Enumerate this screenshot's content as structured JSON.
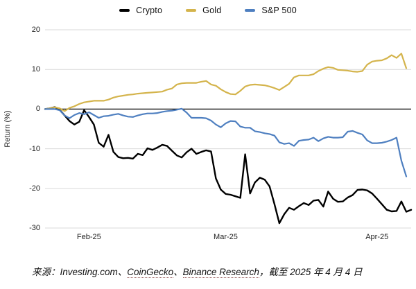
{
  "chart_data": {
    "type": "line",
    "title": "",
    "xlabel": "",
    "ylabel": "Return (%)",
    "grid": true,
    "legend_position": "top-center",
    "x_axis": {
      "tick_labels": [
        "Feb-25",
        "Mar-25",
        "Apr-25"
      ],
      "tick_positions": [
        9,
        37,
        68
      ],
      "range": [
        0,
        75
      ]
    },
    "y_axis": {
      "tick_labels": [
        "20",
        "10",
        "0",
        "-10",
        "-20",
        "-30"
      ],
      "tick_values": [
        20,
        10,
        0,
        -10,
        -20,
        -30
      ],
      "range": [
        -30,
        20
      ],
      "zero_line": true
    },
    "series": [
      {
        "name": "Crypto",
        "color": "#000000",
        "values": [
          0,
          0.2,
          0.5,
          -0.2,
          -1.6,
          -3.0,
          -3.9,
          -3.2,
          -0.3,
          -2.0,
          -3.9,
          -8.5,
          -9.5,
          -6.5,
          -10.8,
          -12.1,
          -12.4,
          -12.3,
          -12.5,
          -11.3,
          -11.6,
          -9.9,
          -10.3,
          -9.7,
          -9.0,
          -9.3,
          -10.5,
          -11.7,
          -12.2,
          -10.9,
          -10.0,
          -11.3,
          -10.8,
          -10.4,
          -10.7,
          -17.5,
          -20.3,
          -21.4,
          -21.6,
          -22.0,
          -22.4,
          -11.4,
          -21.3,
          -18.5,
          -17.3,
          -17.8,
          -19.5,
          -24.0,
          -28.8,
          -26.5,
          -24.9,
          -25.4,
          -24.5,
          -23.7,
          -24.2,
          -23.1,
          -22.9,
          -24.6,
          -20.8,
          -22.6,
          -23.4,
          -23.3,
          -22.3,
          -21.7,
          -20.4,
          -20.3,
          -20.5,
          -21.3,
          -22.6,
          -24.0,
          -25.4,
          -25.8,
          -25.7,
          -23.3,
          -25.9,
          -25.4
        ]
      },
      {
        "name": "Gold",
        "color": "#d4b44c",
        "values": [
          0,
          0.2,
          0.45,
          0.2,
          -0.5,
          0.3,
          0.7,
          1.3,
          1.7,
          1.9,
          2.1,
          2.1,
          2.1,
          2.4,
          2.9,
          3.2,
          3.4,
          3.6,
          3.7,
          3.9,
          4.0,
          4.1,
          4.2,
          4.3,
          4.4,
          4.9,
          5.2,
          6.2,
          6.5,
          6.6,
          6.6,
          6.6,
          6.9,
          7.1,
          6.2,
          5.9,
          5.0,
          4.3,
          3.8,
          3.7,
          4.6,
          5.7,
          6.1,
          6.2,
          6.1,
          6.0,
          5.7,
          5.3,
          4.8,
          5.6,
          6.4,
          8.0,
          8.5,
          8.5,
          8.5,
          8.8,
          9.6,
          10.2,
          10.6,
          10.4,
          9.9,
          9.8,
          9.7,
          9.5,
          9.4,
          9.6,
          11.2,
          12.0,
          12.2,
          12.3,
          12.8,
          13.6,
          12.9,
          14.0,
          10.3
        ]
      },
      {
        "name": "S&P 500",
        "color": "#4e7fc0",
        "values": [
          0,
          0,
          0,
          -0.3,
          -1.6,
          -2.3,
          -1.5,
          -1.0,
          -1.3,
          -0.8,
          -1.5,
          -2.2,
          -1.8,
          -1.7,
          -1.4,
          -1.2,
          -1.6,
          -1.9,
          -2.0,
          -1.6,
          -1.3,
          -1.1,
          -1.1,
          -1.0,
          -0.7,
          -0.5,
          -0.4,
          -0.15,
          0.1,
          -0.9,
          -2.2,
          -2.2,
          -2.2,
          -2.3,
          -2.9,
          -3.9,
          -4.6,
          -3.6,
          -3.0,
          -3.1,
          -4.4,
          -4.7,
          -4.7,
          -5.6,
          -5.8,
          -6.1,
          -6.3,
          -6.7,
          -8.4,
          -8.8,
          -8.6,
          -9.3,
          -8.0,
          -7.8,
          -7.7,
          -7.2,
          -8.1,
          -7.4,
          -7.0,
          -7.2,
          -7.2,
          -7.1,
          -5.7,
          -5.5,
          -6.0,
          -6.4,
          -7.9,
          -8.6,
          -8.6,
          -8.5,
          -8.2,
          -7.8,
          -7.2,
          -13.0,
          -17.0
        ]
      }
    ]
  },
  "source_line": {
    "prefix": "来源：",
    "source1": "Investing.com",
    "sep1": "、",
    "link1": "CoinGecko",
    "sep2": "、",
    "link2": "Binance Research",
    "suffix": "，截至 2025 年 4 月 4 日"
  }
}
